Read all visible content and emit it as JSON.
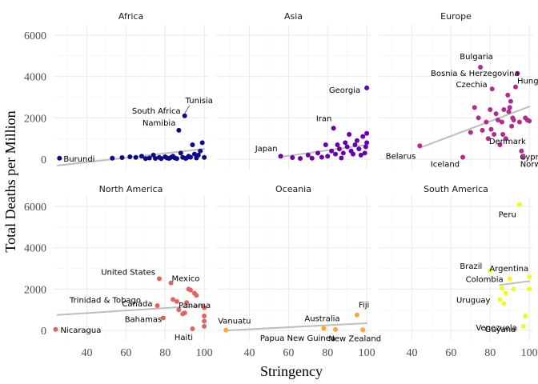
{
  "chart_data": {
    "type": "scatter",
    "xlabel": "Stringency",
    "ylabel": "Total Deaths per Million",
    "xlim": [
      23,
      102
    ],
    "ylim": [
      -500,
      6500
    ],
    "xticks": [
      40,
      60,
      80,
      100
    ],
    "yticks": [
      0,
      2000,
      4000,
      6000
    ],
    "grid": true,
    "trend_line_color": "#bebebe",
    "panels": [
      {
        "name": "Africa",
        "color": "#0d0887",
        "trend": [
          [
            25,
            -300
          ],
          [
            100,
            500
          ]
        ],
        "points": [
          {
            "x": 26,
            "y": 50,
            "label": "Burundi"
          },
          {
            "x": 53,
            "y": 50
          },
          {
            "x": 58,
            "y": 80
          },
          {
            "x": 62,
            "y": 120
          },
          {
            "x": 65,
            "y": 90
          },
          {
            "x": 68,
            "y": 150
          },
          {
            "x": 70,
            "y": 30
          },
          {
            "x": 72,
            "y": 60
          },
          {
            "x": 74,
            "y": 200
          },
          {
            "x": 75,
            "y": 40
          },
          {
            "x": 77,
            "y": 90
          },
          {
            "x": 78,
            "y": 30
          },
          {
            "x": 80,
            "y": 120
          },
          {
            "x": 81,
            "y": 60
          },
          {
            "x": 82,
            "y": 40
          },
          {
            "x": 83,
            "y": 90
          },
          {
            "x": 84,
            "y": 150
          },
          {
            "x": 85,
            "y": 60
          },
          {
            "x": 86,
            "y": 30
          },
          {
            "x": 87,
            "y": 1400,
            "label": "Namibia"
          },
          {
            "x": 88,
            "y": 300
          },
          {
            "x": 89,
            "y": 90
          },
          {
            "x": 90,
            "y": 2100,
            "label": "South Africa"
          },
          {
            "x": 90.5,
            "y": 40
          },
          {
            "x": 91,
            "y": 60
          },
          {
            "x": 92,
            "y": 150
          },
          {
            "x": 93,
            "y": 100
          },
          {
            "x": 94,
            "y": 700
          },
          {
            "x": 95,
            "y": 250
          },
          {
            "x": 96,
            "y": 60
          },
          {
            "x": 97,
            "y": 200
          },
          {
            "x": 98,
            "y": 400
          },
          {
            "x": 99,
            "y": 800
          },
          {
            "x": 100,
            "y": 90
          }
        ]
      },
      {
        "name": "Asia",
        "color": "#6a00a8",
        "trend": [
          [
            55,
            100
          ],
          [
            100,
            700
          ]
        ],
        "points": [
          {
            "x": 56,
            "y": 150,
            "label": "Japan"
          },
          {
            "x": 62,
            "y": 80
          },
          {
            "x": 66,
            "y": 40
          },
          {
            "x": 70,
            "y": 200
          },
          {
            "x": 72,
            "y": 50
          },
          {
            "x": 75,
            "y": 300
          },
          {
            "x": 77,
            "y": 100
          },
          {
            "x": 79,
            "y": 700
          },
          {
            "x": 80,
            "y": 150
          },
          {
            "x": 82,
            "y": 400
          },
          {
            "x": 83,
            "y": 1500,
            "label": "Iran"
          },
          {
            "x": 84,
            "y": 250
          },
          {
            "x": 85,
            "y": 700
          },
          {
            "x": 86,
            "y": 500
          },
          {
            "x": 87,
            "y": 60
          },
          {
            "x": 88,
            "y": 300
          },
          {
            "x": 89,
            "y": 800
          },
          {
            "x": 90,
            "y": 600
          },
          {
            "x": 91,
            "y": 1200
          },
          {
            "x": 92,
            "y": 400
          },
          {
            "x": 93,
            "y": 250
          },
          {
            "x": 94,
            "y": 700
          },
          {
            "x": 95,
            "y": 900
          },
          {
            "x": 96,
            "y": 500
          },
          {
            "x": 97,
            "y": 200
          },
          {
            "x": 98,
            "y": 1100
          },
          {
            "x": 99,
            "y": 300
          },
          {
            "x": 100,
            "y": 3450,
            "label": "Georgia"
          },
          {
            "x": 100,
            "y": 800
          },
          {
            "x": 100,
            "y": 1250
          },
          {
            "x": 99.5,
            "y": 600
          }
        ]
      },
      {
        "name": "Europe",
        "color": "#b12a90",
        "trend": [
          [
            44,
            550
          ],
          [
            100,
            2550
          ]
        ],
        "points": [
          {
            "x": 44,
            "y": 650,
            "label": "Belarus"
          },
          {
            "x": 66,
            "y": 100,
            "label": "Iceland"
          },
          {
            "x": 70,
            "y": 1300
          },
          {
            "x": 72,
            "y": 2500
          },
          {
            "x": 74,
            "y": 2000
          },
          {
            "x": 75,
            "y": 4450,
            "label": "Bulgaria"
          },
          {
            "x": 76,
            "y": 1400
          },
          {
            "x": 78,
            "y": 1800
          },
          {
            "x": 79,
            "y": 1000
          },
          {
            "x": 80,
            "y": 2400
          },
          {
            "x": 80.5,
            "y": 1450
          },
          {
            "x": 81,
            "y": 3400,
            "label": "Czechia"
          },
          {
            "x": 82,
            "y": 1200
          },
          {
            "x": 83,
            "y": 2200
          },
          {
            "x": 84,
            "y": 1900
          },
          {
            "x": 85,
            "y": 700
          },
          {
            "x": 86,
            "y": 1800
          },
          {
            "x": 86.5,
            "y": 1200
          },
          {
            "x": 87,
            "y": 2400
          },
          {
            "x": 88,
            "y": 1000,
            "label": "Denmark"
          },
          {
            "x": 89,
            "y": 3100
          },
          {
            "x": 89.5,
            "y": 2300
          },
          {
            "x": 90,
            "y": 2500
          },
          {
            "x": 90.5,
            "y": 2800
          },
          {
            "x": 91,
            "y": 1600
          },
          {
            "x": 91.5,
            "y": 2000
          },
          {
            "x": 92,
            "y": 1900
          },
          {
            "x": 93,
            "y": 3500,
            "label": "Hungary"
          },
          {
            "x": 94,
            "y": 4150,
            "label": "Bosnia & Herzegovina"
          },
          {
            "x": 95,
            "y": 1800
          },
          {
            "x": 96,
            "y": 400,
            "label": "Cyprus"
          },
          {
            "x": 97,
            "y": 100,
            "label": "Norway"
          },
          {
            "x": 98,
            "y": 2000
          },
          {
            "x": 99,
            "y": 1900
          },
          {
            "x": 100,
            "y": 1850
          }
        ]
      },
      {
        "name": "North America",
        "color": "#e16462",
        "trend": [
          [
            25,
            750
          ],
          [
            100,
            1200
          ]
        ],
        "points": [
          {
            "x": 24,
            "y": 50,
            "label": "Nicaragua"
          },
          {
            "x": 76,
            "y": 1200,
            "label": "Canada"
          },
          {
            "x": 77,
            "y": 2500,
            "label": "United States"
          },
          {
            "x": 79,
            "y": 600
          },
          {
            "x": 83,
            "y": 2300
          },
          {
            "x": 84,
            "y": 1500,
            "label": "Trinidad & Tobago"
          },
          {
            "x": 86,
            "y": 1400
          },
          {
            "x": 87,
            "y": 1000
          },
          {
            "x": 89,
            "y": 800,
            "label": "Bahamas"
          },
          {
            "x": 90,
            "y": 850
          },
          {
            "x": 91,
            "y": 1350,
            "label": "Panama"
          },
          {
            "x": 92,
            "y": 2000
          },
          {
            "x": 93,
            "y": 1950
          },
          {
            "x": 94,
            "y": 80,
            "label": "Haiti"
          },
          {
            "x": 95,
            "y": 1800,
            "label": "Mexico"
          },
          {
            "x": 96,
            "y": 1700
          },
          {
            "x": 100,
            "y": 1100
          },
          {
            "x": 100,
            "y": 700
          },
          {
            "x": 100,
            "y": 450
          },
          {
            "x": 100,
            "y": 200
          }
        ]
      },
      {
        "name": "Oceania",
        "color": "#fca636",
        "trend": [
          [
            28,
            0
          ],
          [
            100,
            350
          ]
        ],
        "points": [
          {
            "x": 28,
            "y": 20,
            "label": "Vanuatu"
          },
          {
            "x": 78,
            "y": 100,
            "label": "Australia"
          },
          {
            "x": 84,
            "y": 50,
            "label": "Papua New Guinea"
          },
          {
            "x": 95,
            "y": 750,
            "label": "Fiji"
          },
          {
            "x": 98,
            "y": 30,
            "label": "New Zealand"
          }
        ]
      },
      {
        "name": "South America",
        "color": "#f0f921",
        "trend": [
          [
            85,
            2200
          ],
          [
            100,
            2380
          ]
        ],
        "points": [
          {
            "x": 80,
            "y": 2900,
            "label": "Brazil"
          },
          {
            "x": 85,
            "y": 1500,
            "label": "Uruguay"
          },
          {
            "x": 86,
            "y": 2050
          },
          {
            "x": 87,
            "y": 1300
          },
          {
            "x": 88,
            "y": 1800
          },
          {
            "x": 90,
            "y": 2500,
            "label": "Colombia"
          },
          {
            "x": 92,
            "y": 2000
          },
          {
            "x": 95,
            "y": 6100,
            "label": "Peru"
          },
          {
            "x": 97,
            "y": 200,
            "label": "Venezuela"
          },
          {
            "x": 98,
            "y": 700,
            "label": "Guyana"
          },
          {
            "x": 100,
            "y": 2600,
            "label": "Argentina"
          },
          {
            "x": 100,
            "y": 2000
          }
        ]
      }
    ]
  }
}
